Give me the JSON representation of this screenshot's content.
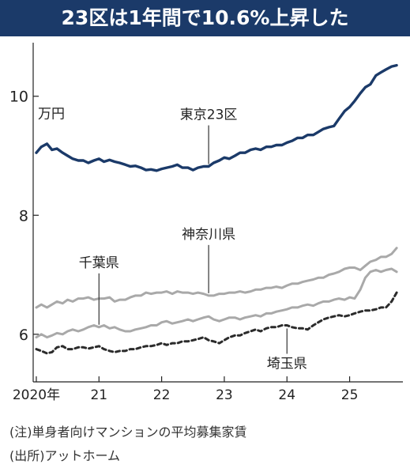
{
  "chart_data": {
    "type": "line",
    "title": "23区は1年間で10.6%上昇した",
    "unit_label": "万円",
    "x_ticks": [
      "2020年",
      "21",
      "22",
      "23",
      "24",
      "25"
    ],
    "y_ticks": [
      "6",
      "8",
      "10"
    ],
    "ylim": [
      5.2,
      10.9
    ],
    "xlim": [
      2019.95,
      2025.85
    ],
    "grid": false,
    "series": [
      {
        "name": "東京23区",
        "color": "#1b3a69",
        "style": "solid",
        "points": [
          [
            2020.0,
            9.05
          ],
          [
            2020.08,
            9.15
          ],
          [
            2020.17,
            9.2
          ],
          [
            2020.25,
            9.1
          ],
          [
            2020.33,
            9.12
          ],
          [
            2020.42,
            9.05
          ],
          [
            2020.5,
            9.0
          ],
          [
            2020.58,
            8.95
          ],
          [
            2020.67,
            8.92
          ],
          [
            2020.75,
            8.92
          ],
          [
            2020.83,
            8.88
          ],
          [
            2020.92,
            8.92
          ],
          [
            2021.0,
            8.95
          ],
          [
            2021.08,
            8.9
          ],
          [
            2021.17,
            8.93
          ],
          [
            2021.25,
            8.9
          ],
          [
            2021.33,
            8.88
          ],
          [
            2021.42,
            8.85
          ],
          [
            2021.5,
            8.82
          ],
          [
            2021.58,
            8.83
          ],
          [
            2021.67,
            8.8
          ],
          [
            2021.75,
            8.76
          ],
          [
            2021.83,
            8.77
          ],
          [
            2021.92,
            8.75
          ],
          [
            2022.0,
            8.78
          ],
          [
            2022.08,
            8.8
          ],
          [
            2022.17,
            8.82
          ],
          [
            2022.25,
            8.85
          ],
          [
            2022.33,
            8.8
          ],
          [
            2022.42,
            8.8
          ],
          [
            2022.5,
            8.76
          ],
          [
            2022.58,
            8.8
          ],
          [
            2022.67,
            8.82
          ],
          [
            2022.75,
            8.82
          ],
          [
            2022.83,
            8.88
          ],
          [
            2022.92,
            8.92
          ],
          [
            2023.0,
            8.97
          ],
          [
            2023.08,
            8.95
          ],
          [
            2023.17,
            9.0
          ],
          [
            2023.25,
            9.05
          ],
          [
            2023.33,
            9.05
          ],
          [
            2023.42,
            9.1
          ],
          [
            2023.5,
            9.12
          ],
          [
            2023.58,
            9.1
          ],
          [
            2023.67,
            9.15
          ],
          [
            2023.75,
            9.15
          ],
          [
            2023.83,
            9.18
          ],
          [
            2023.92,
            9.18
          ],
          [
            2024.0,
            9.22
          ],
          [
            2024.08,
            9.25
          ],
          [
            2024.17,
            9.3
          ],
          [
            2024.25,
            9.3
          ],
          [
            2024.33,
            9.35
          ],
          [
            2024.42,
            9.35
          ],
          [
            2024.5,
            9.4
          ],
          [
            2024.58,
            9.45
          ],
          [
            2024.67,
            9.48
          ],
          [
            2024.75,
            9.5
          ],
          [
            2024.83,
            9.62
          ],
          [
            2024.92,
            9.75
          ],
          [
            2025.0,
            9.82
          ],
          [
            2025.08,
            9.92
          ],
          [
            2025.17,
            10.05
          ],
          [
            2025.25,
            10.15
          ],
          [
            2025.33,
            10.2
          ],
          [
            2025.42,
            10.35
          ],
          [
            2025.5,
            10.4
          ],
          [
            2025.58,
            10.45
          ],
          [
            2025.67,
            10.5
          ],
          [
            2025.75,
            10.52
          ]
        ]
      },
      {
        "name": "神奈川県",
        "color": "#a9a9a9",
        "style": "solid",
        "points": [
          [
            2020.0,
            6.45
          ],
          [
            2020.08,
            6.5
          ],
          [
            2020.17,
            6.45
          ],
          [
            2020.25,
            6.5
          ],
          [
            2020.33,
            6.55
          ],
          [
            2020.42,
            6.52
          ],
          [
            2020.5,
            6.58
          ],
          [
            2020.58,
            6.55
          ],
          [
            2020.67,
            6.6
          ],
          [
            2020.75,
            6.6
          ],
          [
            2020.83,
            6.62
          ],
          [
            2020.92,
            6.58
          ],
          [
            2021.0,
            6.6
          ],
          [
            2021.08,
            6.6
          ],
          [
            2021.17,
            6.62
          ],
          [
            2021.25,
            6.55
          ],
          [
            2021.33,
            6.58
          ],
          [
            2021.42,
            6.58
          ],
          [
            2021.5,
            6.62
          ],
          [
            2021.58,
            6.65
          ],
          [
            2021.67,
            6.65
          ],
          [
            2021.75,
            6.7
          ],
          [
            2021.83,
            6.68
          ],
          [
            2021.92,
            6.7
          ],
          [
            2022.0,
            6.7
          ],
          [
            2022.08,
            6.72
          ],
          [
            2022.17,
            6.68
          ],
          [
            2022.25,
            6.72
          ],
          [
            2022.33,
            6.7
          ],
          [
            2022.42,
            6.7
          ],
          [
            2022.5,
            6.68
          ],
          [
            2022.58,
            6.7
          ],
          [
            2022.67,
            6.68
          ],
          [
            2022.75,
            6.65
          ],
          [
            2022.83,
            6.65
          ],
          [
            2022.92,
            6.68
          ],
          [
            2023.0,
            6.68
          ],
          [
            2023.08,
            6.7
          ],
          [
            2023.17,
            6.7
          ],
          [
            2023.25,
            6.72
          ],
          [
            2023.33,
            6.7
          ],
          [
            2023.42,
            6.72
          ],
          [
            2023.5,
            6.75
          ],
          [
            2023.58,
            6.75
          ],
          [
            2023.67,
            6.78
          ],
          [
            2023.75,
            6.78
          ],
          [
            2023.83,
            6.8
          ],
          [
            2023.92,
            6.78
          ],
          [
            2024.0,
            6.82
          ],
          [
            2024.08,
            6.85
          ],
          [
            2024.17,
            6.85
          ],
          [
            2024.25,
            6.88
          ],
          [
            2024.33,
            6.9
          ],
          [
            2024.42,
            6.92
          ],
          [
            2024.5,
            6.95
          ],
          [
            2024.58,
            6.95
          ],
          [
            2024.67,
            7.0
          ],
          [
            2024.75,
            7.02
          ],
          [
            2024.83,
            7.05
          ],
          [
            2024.92,
            7.1
          ],
          [
            2025.0,
            7.12
          ],
          [
            2025.08,
            7.12
          ],
          [
            2025.17,
            7.08
          ],
          [
            2025.25,
            7.15
          ],
          [
            2025.33,
            7.22
          ],
          [
            2025.42,
            7.25
          ],
          [
            2025.5,
            7.3
          ],
          [
            2025.58,
            7.3
          ],
          [
            2025.67,
            7.35
          ],
          [
            2025.75,
            7.45
          ]
        ]
      },
      {
        "name": "千葉県",
        "color": "#a9a9a9",
        "style": "solid",
        "points": [
          [
            2020.0,
            5.95
          ],
          [
            2020.08,
            6.0
          ],
          [
            2020.17,
            5.95
          ],
          [
            2020.25,
            5.98
          ],
          [
            2020.33,
            6.02
          ],
          [
            2020.42,
            6.0
          ],
          [
            2020.5,
            6.05
          ],
          [
            2020.58,
            6.08
          ],
          [
            2020.67,
            6.05
          ],
          [
            2020.75,
            6.08
          ],
          [
            2020.83,
            6.12
          ],
          [
            2020.92,
            6.15
          ],
          [
            2021.0,
            6.12
          ],
          [
            2021.08,
            6.15
          ],
          [
            2021.17,
            6.1
          ],
          [
            2021.25,
            6.12
          ],
          [
            2021.33,
            6.08
          ],
          [
            2021.42,
            6.05
          ],
          [
            2021.5,
            6.05
          ],
          [
            2021.58,
            6.08
          ],
          [
            2021.67,
            6.1
          ],
          [
            2021.75,
            6.12
          ],
          [
            2021.83,
            6.15
          ],
          [
            2021.92,
            6.15
          ],
          [
            2022.0,
            6.2
          ],
          [
            2022.08,
            6.22
          ],
          [
            2022.17,
            6.18
          ],
          [
            2022.25,
            6.2
          ],
          [
            2022.33,
            6.22
          ],
          [
            2022.42,
            6.25
          ],
          [
            2022.5,
            6.22
          ],
          [
            2022.58,
            6.25
          ],
          [
            2022.67,
            6.28
          ],
          [
            2022.75,
            6.3
          ],
          [
            2022.83,
            6.25
          ],
          [
            2022.92,
            6.22
          ],
          [
            2023.0,
            6.25
          ],
          [
            2023.08,
            6.28
          ],
          [
            2023.17,
            6.28
          ],
          [
            2023.25,
            6.25
          ],
          [
            2023.33,
            6.28
          ],
          [
            2023.42,
            6.3
          ],
          [
            2023.5,
            6.32
          ],
          [
            2023.58,
            6.3
          ],
          [
            2023.67,
            6.35
          ],
          [
            2023.75,
            6.35
          ],
          [
            2023.83,
            6.38
          ],
          [
            2023.92,
            6.4
          ],
          [
            2024.0,
            6.42
          ],
          [
            2024.08,
            6.45
          ],
          [
            2024.17,
            6.45
          ],
          [
            2024.25,
            6.48
          ],
          [
            2024.33,
            6.5
          ],
          [
            2024.42,
            6.48
          ],
          [
            2024.5,
            6.52
          ],
          [
            2024.58,
            6.55
          ],
          [
            2024.67,
            6.55
          ],
          [
            2024.75,
            6.58
          ],
          [
            2024.83,
            6.6
          ],
          [
            2024.92,
            6.58
          ],
          [
            2025.0,
            6.62
          ],
          [
            2025.08,
            6.6
          ],
          [
            2025.17,
            6.75
          ],
          [
            2025.25,
            6.95
          ],
          [
            2025.33,
            7.05
          ],
          [
            2025.42,
            7.08
          ],
          [
            2025.5,
            7.05
          ],
          [
            2025.58,
            7.08
          ],
          [
            2025.67,
            7.1
          ],
          [
            2025.75,
            7.05
          ]
        ]
      },
      {
        "name": "埼玉県",
        "color": "#2b2b2b",
        "style": "dashed",
        "points": [
          [
            2020.0,
            5.75
          ],
          [
            2020.08,
            5.72
          ],
          [
            2020.17,
            5.68
          ],
          [
            2020.25,
            5.7
          ],
          [
            2020.33,
            5.78
          ],
          [
            2020.42,
            5.8
          ],
          [
            2020.5,
            5.75
          ],
          [
            2020.58,
            5.75
          ],
          [
            2020.67,
            5.78
          ],
          [
            2020.75,
            5.78
          ],
          [
            2020.83,
            5.76
          ],
          [
            2020.92,
            5.78
          ],
          [
            2021.0,
            5.8
          ],
          [
            2021.08,
            5.75
          ],
          [
            2021.17,
            5.72
          ],
          [
            2021.25,
            5.7
          ],
          [
            2021.33,
            5.72
          ],
          [
            2021.42,
            5.72
          ],
          [
            2021.5,
            5.75
          ],
          [
            2021.58,
            5.75
          ],
          [
            2021.67,
            5.78
          ],
          [
            2021.75,
            5.8
          ],
          [
            2021.83,
            5.8
          ],
          [
            2021.92,
            5.82
          ],
          [
            2022.0,
            5.85
          ],
          [
            2022.08,
            5.82
          ],
          [
            2022.17,
            5.85
          ],
          [
            2022.25,
            5.85
          ],
          [
            2022.33,
            5.88
          ],
          [
            2022.42,
            5.88
          ],
          [
            2022.5,
            5.9
          ],
          [
            2022.58,
            5.92
          ],
          [
            2022.67,
            5.95
          ],
          [
            2022.75,
            5.9
          ],
          [
            2022.83,
            5.88
          ],
          [
            2022.92,
            5.85
          ],
          [
            2023.0,
            5.9
          ],
          [
            2023.08,
            5.95
          ],
          [
            2023.17,
            5.98
          ],
          [
            2023.25,
            5.98
          ],
          [
            2023.33,
            6.02
          ],
          [
            2023.42,
            6.05
          ],
          [
            2023.5,
            6.08
          ],
          [
            2023.58,
            6.05
          ],
          [
            2023.67,
            6.1
          ],
          [
            2023.75,
            6.12
          ],
          [
            2023.83,
            6.12
          ],
          [
            2023.92,
            6.15
          ],
          [
            2024.0,
            6.15
          ],
          [
            2024.08,
            6.12
          ],
          [
            2024.17,
            6.1
          ],
          [
            2024.25,
            6.1
          ],
          [
            2024.33,
            6.08
          ],
          [
            2024.42,
            6.15
          ],
          [
            2024.5,
            6.2
          ],
          [
            2024.58,
            6.25
          ],
          [
            2024.67,
            6.28
          ],
          [
            2024.75,
            6.3
          ],
          [
            2024.83,
            6.32
          ],
          [
            2024.92,
            6.3
          ],
          [
            2025.0,
            6.32
          ],
          [
            2025.08,
            6.35
          ],
          [
            2025.17,
            6.38
          ],
          [
            2025.25,
            6.4
          ],
          [
            2025.33,
            6.4
          ],
          [
            2025.42,
            6.42
          ],
          [
            2025.5,
            6.45
          ],
          [
            2025.58,
            6.45
          ],
          [
            2025.67,
            6.55
          ],
          [
            2025.75,
            6.7
          ]
        ]
      }
    ],
    "annotations": [
      {
        "text": "東京23区",
        "series": "東京23区",
        "at_x": 2022.75
      },
      {
        "text": "神奈川県",
        "series": "神奈川県",
        "at_x": 2022.72
      },
      {
        "text": "千葉県",
        "series": "千葉県",
        "at_x": 2021.0
      },
      {
        "text": "埼玉県",
        "series": "埼玉県",
        "at_x": 2024.0
      }
    ]
  },
  "notes": {
    "note_line": "(注)単身者向けマンションの平均募集家賃",
    "source_line": "(出所)アットホーム"
  }
}
